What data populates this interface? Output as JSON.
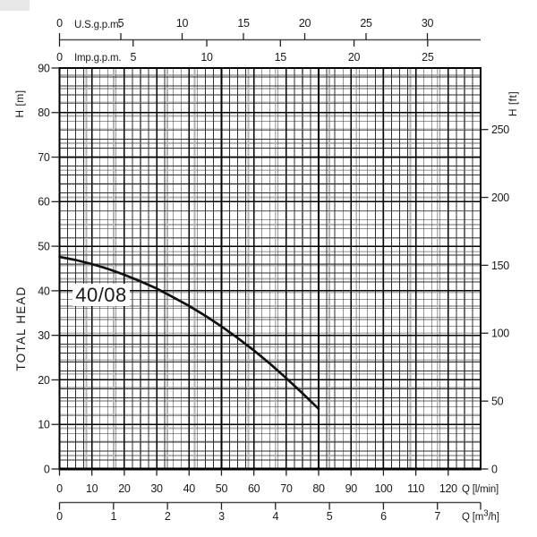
{
  "chart_data": {
    "type": "line",
    "curve_label": "40/08",
    "ylabel_left": "TOTAL HEAD",
    "axes": {
      "flow_lmin": {
        "label": "Q [l/min]",
        "ticks": [
          0,
          10,
          20,
          30,
          40,
          50,
          60,
          70,
          80,
          90,
          100,
          110,
          120
        ],
        "range": [
          0,
          130
        ]
      },
      "flow_m3h": {
        "label_pre": "Q [m",
        "label_sup": "3",
        "label_post": "/h]",
        "ticks": [
          0,
          1,
          2,
          3,
          4,
          5,
          6,
          7
        ],
        "lmin_per_unit": 16.6667
      },
      "flow_usgpm": {
        "label": "U.S.g.p.m.",
        "ticks": [
          0,
          5,
          10,
          15,
          20,
          25,
          30
        ],
        "lmin_per_unit": 3.7854
      },
      "flow_impgpm": {
        "label": "Imp.g.p.m.",
        "ticks": [
          0,
          5,
          10,
          15,
          20,
          25
        ],
        "lmin_per_unit": 4.5461
      },
      "head_m": {
        "label": "H [m]",
        "ticks": [
          0,
          10,
          20,
          30,
          40,
          50,
          60,
          70,
          80,
          90
        ],
        "range": [
          0,
          90
        ]
      },
      "head_ft": {
        "label": "H [ft]",
        "ticks": [
          0,
          50,
          100,
          150,
          200,
          250
        ],
        "m_per_unit": 0.3048
      }
    },
    "grid": {
      "minor_lmin_step": 2.5,
      "minor_m_step": 2,
      "alt_m3h_step": 0.5,
      "alt_ft_step": 10
    },
    "series": [
      {
        "name": "40/08",
        "x_unit": "l/min",
        "y_unit": "m",
        "points": [
          [
            0,
            47.6
          ],
          [
            5,
            46.9
          ],
          [
            10,
            46.0
          ],
          [
            15,
            44.9
          ],
          [
            20,
            43.6
          ],
          [
            25,
            42.1
          ],
          [
            30,
            40.5
          ],
          [
            35,
            38.6
          ],
          [
            40,
            36.6
          ],
          [
            45,
            34.4
          ],
          [
            50,
            32.0
          ],
          [
            55,
            29.4
          ],
          [
            60,
            26.6
          ],
          [
            65,
            23.6
          ],
          [
            70,
            20.4
          ],
          [
            75,
            17.0
          ],
          [
            80,
            13.5
          ]
        ]
      }
    ],
    "colors": {
      "curve": "#111111",
      "grid_major": "#000000",
      "grid_minor": "#2e2e2e",
      "grid_alt": "#b3b3b3",
      "axis_line": "#4a4a4a",
      "tick": "#222222",
      "text": "#1a1a1a",
      "label_bg": "#ffffff",
      "artifact": "#e8e8e8"
    }
  }
}
